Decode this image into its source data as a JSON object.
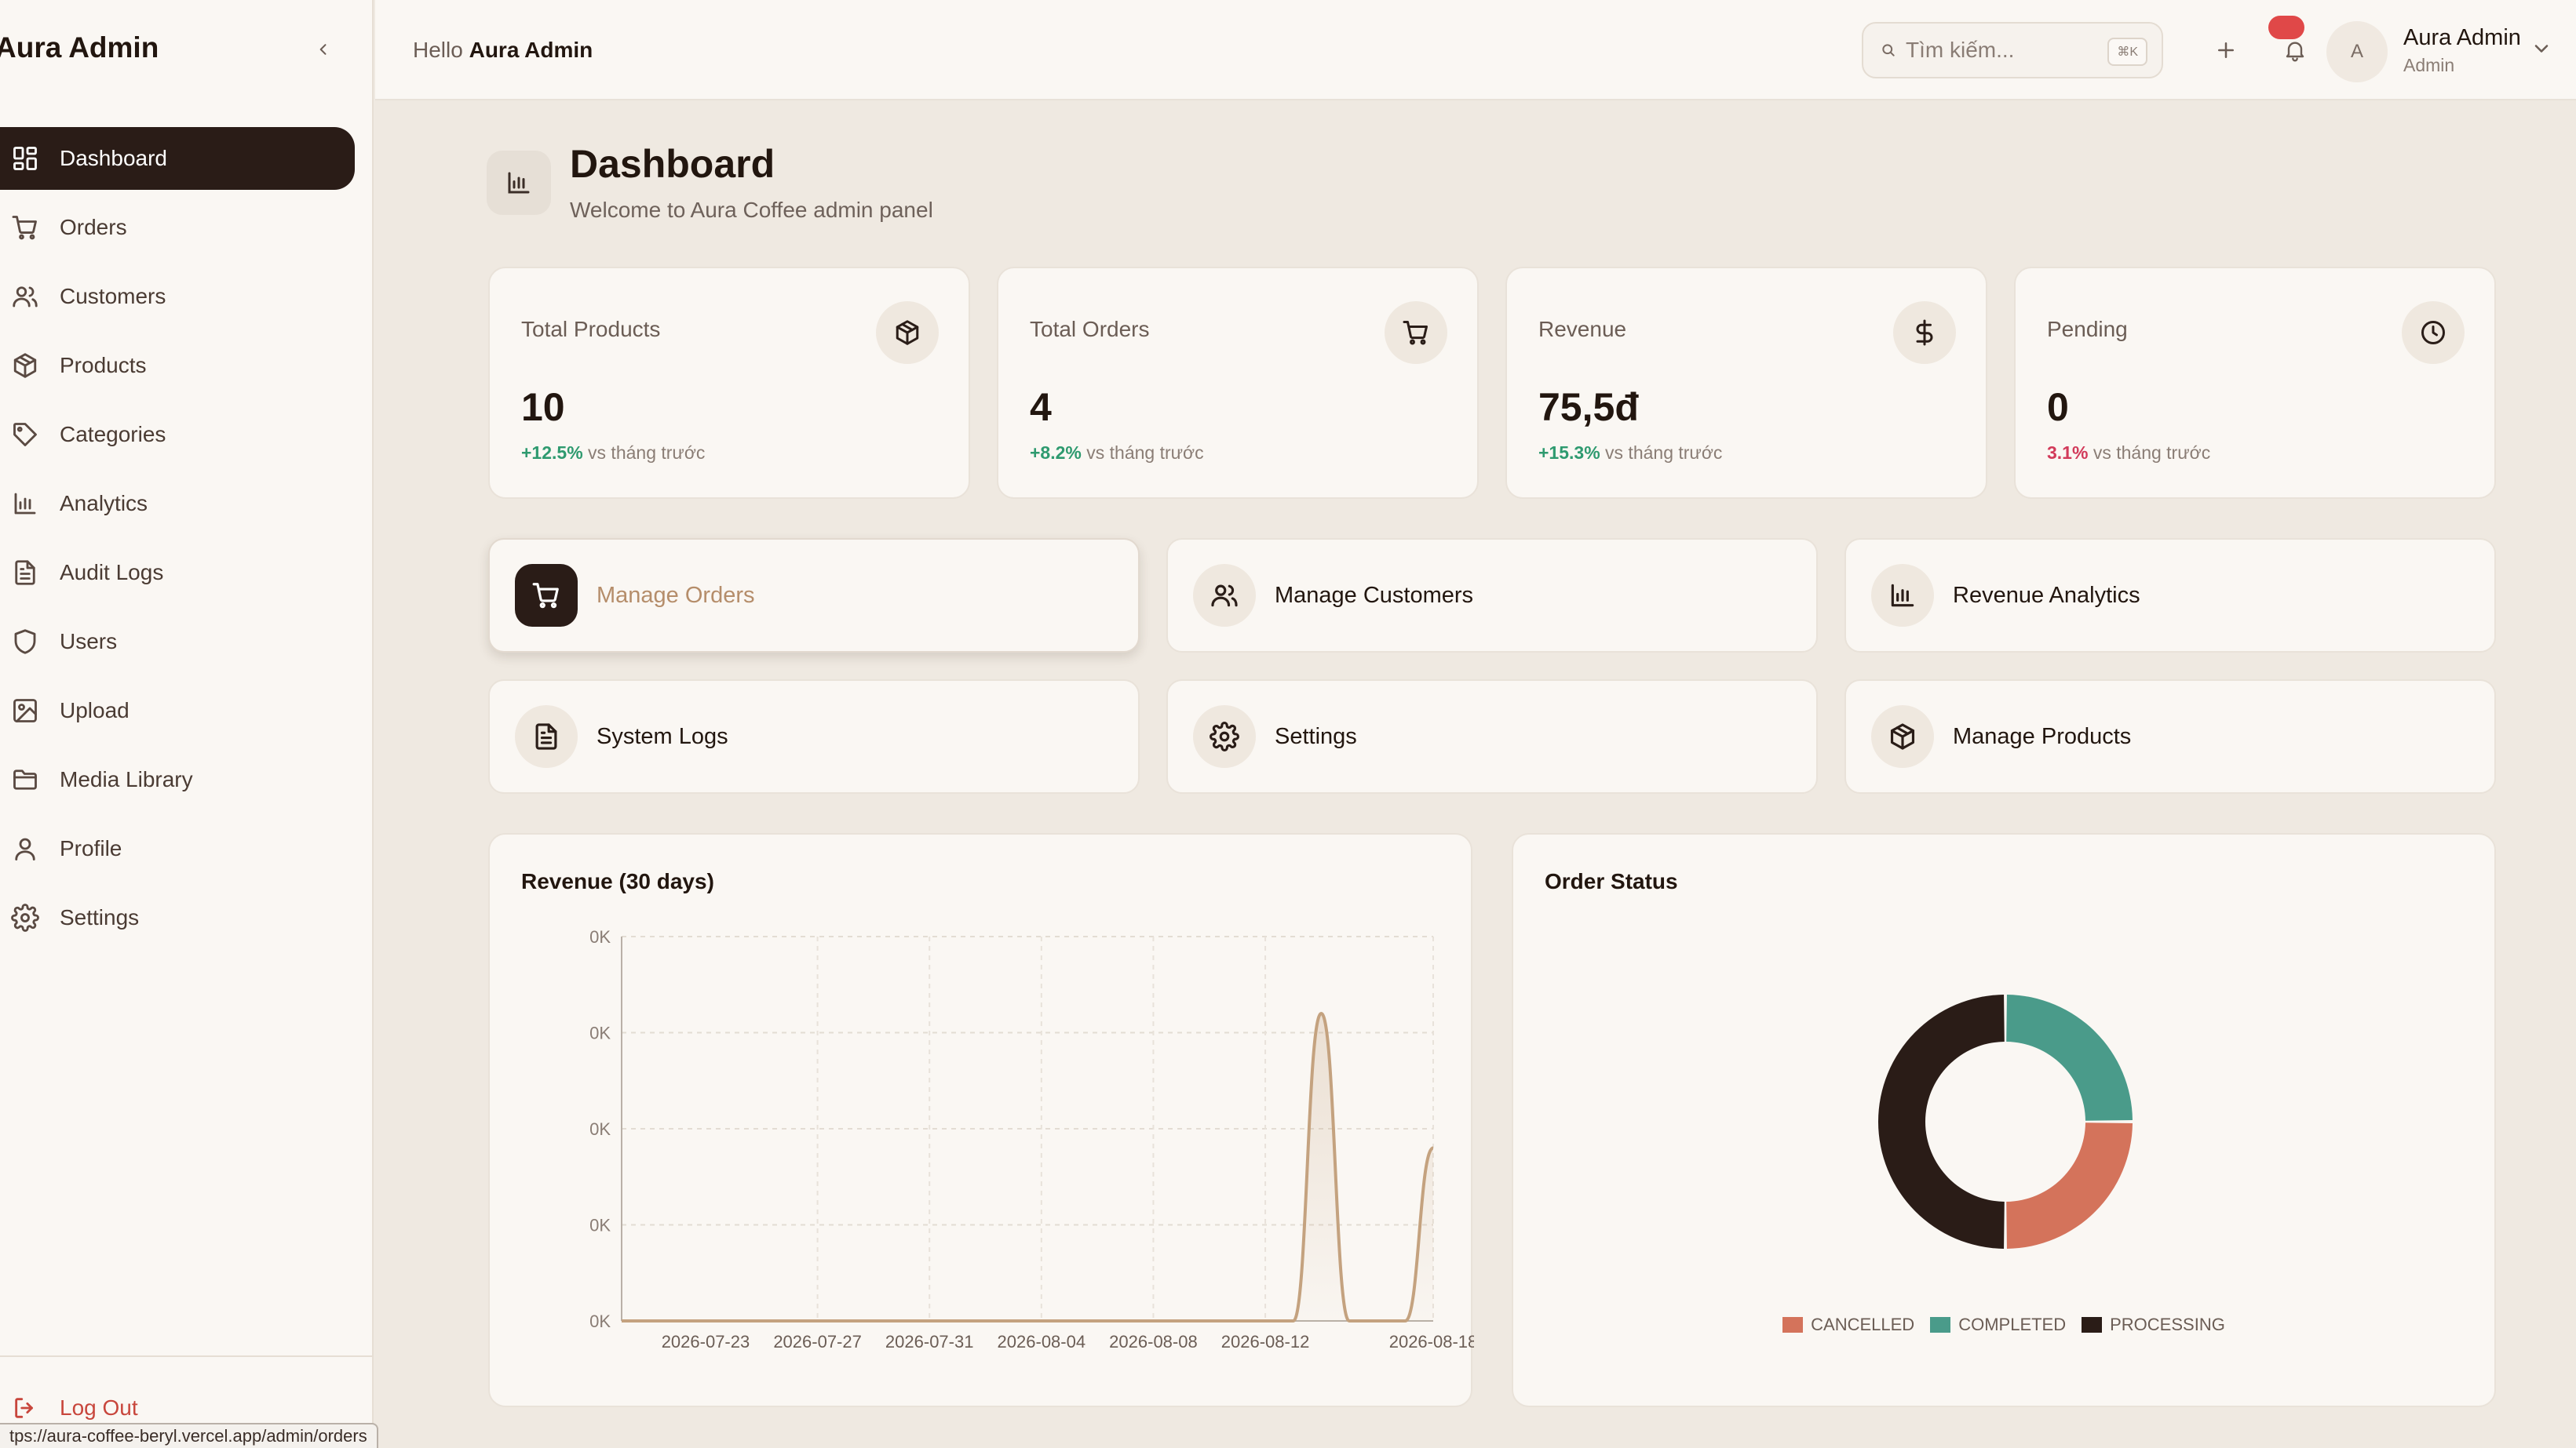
{
  "app": {
    "brand": "Aura Admin"
  },
  "sidebar": {
    "items": [
      {
        "label": "Dashboard",
        "icon": "dashboard-grid-icon",
        "active": true
      },
      {
        "label": "Orders",
        "icon": "cart-icon"
      },
      {
        "label": "Customers",
        "icon": "users-icon"
      },
      {
        "label": "Products",
        "icon": "package-icon"
      },
      {
        "label": "Categories",
        "icon": "tag-icon"
      },
      {
        "label": "Analytics",
        "icon": "bar-chart-icon"
      },
      {
        "label": "Audit Logs",
        "icon": "file-text-icon"
      },
      {
        "label": "Users",
        "icon": "shield-icon"
      },
      {
        "label": "Upload",
        "icon": "image-icon"
      },
      {
        "label": "Media Library",
        "icon": "folder-icon"
      },
      {
        "label": "Profile",
        "icon": "user-icon"
      },
      {
        "label": "Settings",
        "icon": "gear-icon"
      }
    ],
    "logout_label": "Log Out"
  },
  "status_bar": {
    "url": "tps://aura-coffee-beryl.vercel.app/admin/orders"
  },
  "topbar": {
    "greeting_prefix": "Hello",
    "greeting_name": "Aura Admin",
    "search_placeholder": "Tìm kiếm...",
    "search_shortcut": "⌘K",
    "user_initial": "A",
    "user_name": "Aura Admin",
    "user_role": "Admin"
  },
  "header": {
    "title": "Dashboard",
    "subtitle": "Welcome to Aura Coffee admin panel"
  },
  "stats": [
    {
      "label": "Total Products",
      "value": "10",
      "change": "+12.5%",
      "change_suffix": "vs tháng trước",
      "trend": "pos",
      "icon": "package-icon"
    },
    {
      "label": "Total Orders",
      "value": "4",
      "change": "+8.2%",
      "change_suffix": "vs tháng trước",
      "trend": "pos",
      "icon": "cart-icon"
    },
    {
      "label": "Revenue",
      "value": "75,5đ",
      "change": "+15.3%",
      "change_suffix": "vs tháng trước",
      "trend": "pos",
      "icon": "dollar-icon"
    },
    {
      "label": "Pending",
      "value": "0",
      "change": "3.1%",
      "change_suffix": "vs tháng trước",
      "trend": "neg",
      "icon": "clock-icon"
    }
  ],
  "actions": [
    {
      "label": "Manage Orders",
      "icon": "cart-icon",
      "selected": true
    },
    {
      "label": "Manage Customers",
      "icon": "users-icon"
    },
    {
      "label": "Revenue Analytics",
      "icon": "bar-chart-icon"
    },
    {
      "label": "System Logs",
      "icon": "file-text-icon"
    },
    {
      "label": "Settings",
      "icon": "gear-icon"
    },
    {
      "label": "Manage Products",
      "icon": "package-icon"
    }
  ],
  "colors": {
    "accent_dark": "#2a1c17",
    "line": "#c4a27f",
    "cancelled": "#d4735b",
    "completed": "#4a9b8a",
    "processing": "#2a1c17"
  },
  "chart_data": [
    {
      "type": "area",
      "title": "Revenue (30 days)",
      "x_tick_labels": [
        "2026-07-23",
        "2026-07-27",
        "2026-07-31",
        "2026-08-04",
        "2026-08-08",
        "2026-08-12",
        "2026-08-18"
      ],
      "y_tick_labels": [
        "0K",
        "0K",
        "0K",
        "0K",
        "0K"
      ],
      "x": [
        "2026-07-20",
        "2026-07-21",
        "2026-07-22",
        "2026-07-23",
        "2026-07-24",
        "2026-07-25",
        "2026-07-26",
        "2026-07-27",
        "2026-07-28",
        "2026-07-29",
        "2026-07-30",
        "2026-07-31",
        "2026-08-01",
        "2026-08-02",
        "2026-08-03",
        "2026-08-04",
        "2026-08-05",
        "2026-08-06",
        "2026-08-07",
        "2026-08-08",
        "2026-08-09",
        "2026-08-10",
        "2026-08-11",
        "2026-08-12",
        "2026-08-13",
        "2026-08-14",
        "2026-08-15",
        "2026-08-16",
        "2026-08-17",
        "2026-08-18"
      ],
      "values": [
        0,
        0,
        0,
        0,
        0,
        0,
        0,
        0,
        0,
        0,
        0,
        0,
        0,
        0,
        0,
        0,
        0,
        0,
        0,
        0,
        0,
        0,
        0,
        0,
        0,
        0.032,
        0,
        0,
        0,
        0.018
      ],
      "ylim": [
        0,
        0.04
      ],
      "grid": true
    },
    {
      "type": "pie",
      "title": "Order Status",
      "categories": [
        "CANCELLED",
        "COMPLETED",
        "PROCESSING"
      ],
      "values": [
        1,
        1,
        2
      ],
      "legend": "bottom"
    }
  ]
}
